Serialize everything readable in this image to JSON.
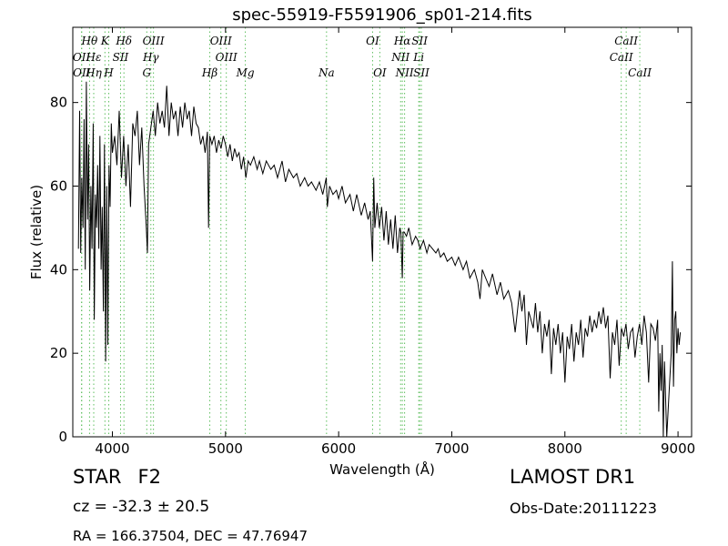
{
  "chart_data": {
    "type": "line",
    "title": "spec-55919-F5591906_sp01-214.fits",
    "xlabel": "Wavelength (Å)",
    "ylabel": "Flux (relative)",
    "xlim": [
      3650,
      9120
    ],
    "ylim": [
      0,
      98
    ],
    "xticks": [
      4000,
      5000,
      6000,
      7000,
      8000,
      9000
    ],
    "yticks": [
      0,
      20,
      40,
      60,
      80
    ],
    "line_color": "#000000",
    "marker_color": "#5fbf5f",
    "x": [
      3700,
      3710,
      3720,
      3730,
      3740,
      3750,
      3760,
      3770,
      3780,
      3790,
      3800,
      3810,
      3820,
      3830,
      3840,
      3850,
      3860,
      3870,
      3880,
      3890,
      3900,
      3910,
      3920,
      3930,
      3940,
      3950,
      3960,
      3970,
      3980,
      3990,
      4000,
      4020,
      4040,
      4060,
      4080,
      4100,
      4120,
      4140,
      4160,
      4180,
      4200,
      4220,
      4240,
      4260,
      4280,
      4300,
      4310,
      4320,
      4340,
      4360,
      4380,
      4400,
      4420,
      4440,
      4460,
      4480,
      4500,
      4520,
      4540,
      4560,
      4580,
      4600,
      4620,
      4640,
      4660,
      4680,
      4700,
      4720,
      4740,
      4760,
      4780,
      4800,
      4820,
      4840,
      4850,
      4861,
      4870,
      4880,
      4900,
      4920,
      4940,
      4960,
      4980,
      5000,
      5020,
      5040,
      5060,
      5080,
      5100,
      5120,
      5140,
      5160,
      5180,
      5200,
      5220,
      5250,
      5280,
      5300,
      5330,
      5360,
      5400,
      5430,
      5460,
      5500,
      5530,
      5560,
      5600,
      5630,
      5660,
      5700,
      5730,
      5760,
      5800,
      5830,
      5860,
      5890,
      5900,
      5920,
      5950,
      5980,
      6000,
      6030,
      6060,
      6100,
      6130,
      6160,
      6200,
      6230,
      6260,
      6280,
      6300,
      6310,
      6320,
      6340,
      6360,
      6380,
      6400,
      6420,
      6440,
      6460,
      6480,
      6500,
      6520,
      6540,
      6550,
      6563,
      6570,
      6580,
      6600,
      6620,
      6650,
      6680,
      6700,
      6720,
      6750,
      6780,
      6800,
      6830,
      6860,
      6880,
      6900,
      6930,
      6960,
      7000,
      7030,
      7060,
      7100,
      7130,
      7160,
      7200,
      7230,
      7250,
      7270,
      7300,
      7330,
      7360,
      7400,
      7430,
      7460,
      7500,
      7530,
      7560,
      7600,
      7620,
      7640,
      7660,
      7680,
      7700,
      7720,
      7740,
      7760,
      7780,
      7800,
      7820,
      7840,
      7860,
      7880,
      7900,
      7920,
      7940,
      7960,
      7980,
      8000,
      8020,
      8040,
      8060,
      8080,
      8100,
      8120,
      8140,
      8160,
      8180,
      8200,
      8220,
      8240,
      8260,
      8280,
      8300,
      8320,
      8340,
      8360,
      8380,
      8400,
      8420,
      8440,
      8460,
      8480,
      8500,
      8520,
      8540,
      8560,
      8580,
      8600,
      8620,
      8640,
      8660,
      8680,
      8700,
      8720,
      8740,
      8760,
      8780,
      8800,
      8820,
      8830,
      8840,
      8850,
      8860,
      8870,
      8880,
      8900,
      8920,
      8940,
      8950,
      8960,
      8970,
      8980,
      8990,
      9000,
      9010,
      9020
    ],
    "y": [
      45,
      78,
      44,
      62,
      50,
      76,
      40,
      85,
      52,
      70,
      35,
      60,
      45,
      75,
      28,
      58,
      50,
      65,
      45,
      72,
      40,
      55,
      30,
      70,
      18,
      60,
      22,
      65,
      55,
      75,
      68,
      72,
      65,
      78,
      62,
      72,
      60,
      70,
      55,
      75,
      72,
      78,
      65,
      74,
      60,
      50,
      44,
      70,
      74,
      78,
      72,
      80,
      75,
      78,
      74,
      84,
      72,
      80,
      76,
      78,
      72,
      79,
      74,
      80,
      76,
      78,
      72,
      79,
      75,
      74,
      70,
      72,
      68,
      73,
      50,
      72,
      71,
      70,
      72,
      68,
      71,
      69,
      72,
      70,
      67,
      70,
      66,
      69,
      67,
      68,
      64,
      67,
      62,
      66,
      65,
      67,
      64,
      66,
      63,
      66,
      64,
      65,
      62,
      66,
      61,
      64,
      62,
      63,
      60,
      62,
      60,
      61,
      59,
      61,
      58,
      62,
      55,
      60,
      58,
      59,
      57,
      60,
      56,
      58,
      54,
      58,
      53,
      56,
      52,
      54,
      42,
      62,
      50,
      56,
      50,
      55,
      47,
      54,
      46,
      52,
      45,
      53,
      44,
      50,
      49,
      38,
      49,
      49,
      48,
      50,
      46,
      48,
      47,
      45,
      47,
      44,
      46,
      45,
      44,
      45,
      43,
      44,
      42,
      43,
      41,
      43,
      40,
      42,
      38,
      40,
      37,
      33,
      40,
      38,
      36,
      39,
      34,
      37,
      33,
      35,
      32,
      25,
      35,
      30,
      34,
      22,
      30,
      28,
      26,
      32,
      25,
      30,
      20,
      27,
      24,
      28,
      15,
      26,
      22,
      27,
      20,
      25,
      13,
      24,
      21,
      27,
      18,
      25,
      22,
      28,
      19,
      26,
      24,
      29,
      25,
      28,
      26,
      30,
      27,
      31,
      26,
      29,
      14,
      25,
      22,
      28,
      17,
      26,
      24,
      27,
      21,
      25,
      26,
      19,
      24,
      27,
      22,
      29,
      25,
      13,
      27,
      26,
      23,
      28,
      6,
      20,
      11,
      22,
      0,
      18,
      0,
      10,
      20,
      42,
      12,
      28,
      30,
      20,
      26,
      22,
      25
    ],
    "markers": [
      {
        "label": "Hθ",
        "wavelength": 3798,
        "row": 1
      },
      {
        "label": "K",
        "wavelength": 3934,
        "row": 1
      },
      {
        "label": "Hδ",
        "wavelength": 4102,
        "row": 1
      },
      {
        "label": "OIII",
        "wavelength": 4363,
        "row": 1
      },
      {
        "label": "OIII",
        "wavelength": 4959,
        "row": 1
      },
      {
        "label": "OI",
        "wavelength": 6300,
        "row": 1
      },
      {
        "label": "Hα",
        "wavelength": 6563,
        "row": 1
      },
      {
        "label": "SII",
        "wavelength": 6716,
        "row": 1
      },
      {
        "label": "CaII",
        "wavelength": 8542,
        "row": 1
      },
      {
        "label": "OII",
        "wavelength": 3727,
        "row": 2
      },
      {
        "label": "Hε",
        "wavelength": 3835,
        "row": 2
      },
      {
        "label": "SII",
        "wavelength": 4072,
        "row": 2
      },
      {
        "label": "Hγ",
        "wavelength": 4340,
        "row": 2
      },
      {
        "label": "OIII",
        "wavelength": 5007,
        "row": 2
      },
      {
        "label": "NII",
        "wavelength": 6548,
        "row": 2
      },
      {
        "label": "Li",
        "wavelength": 6708,
        "row": 2
      },
      {
        "label": "CaII",
        "wavelength": 8498,
        "row": 2
      },
      {
        "label": "OII",
        "wavelength": 3729,
        "row": 3
      },
      {
        "label": "Hη",
        "wavelength": 3835,
        "row": 3
      },
      {
        "label": "H",
        "wavelength": 3968,
        "row": 3
      },
      {
        "label": "G",
        "wavelength": 4304,
        "row": 3
      },
      {
        "label": "Hβ",
        "wavelength": 4861,
        "row": 3
      },
      {
        "label": "Mg",
        "wavelength": 5175,
        "row": 3
      },
      {
        "label": "Na",
        "wavelength": 5893,
        "row": 3
      },
      {
        "label": "OI",
        "wavelength": 6364,
        "row": 3
      },
      {
        "label": "NII",
        "wavelength": 6583,
        "row": 3
      },
      {
        "label": "SII",
        "wavelength": 6731,
        "row": 3
      },
      {
        "label": "CaII",
        "wavelength": 8662,
        "row": 3
      }
    ]
  },
  "info": {
    "object_class": "STAR",
    "subclass": "F2",
    "cz": "cz = -32.3 ± 20.5",
    "radec": "RA = 166.37504, DEC = 47.76947",
    "survey": "LAMOST DR1",
    "obs_date": "Obs-Date:20111223"
  }
}
